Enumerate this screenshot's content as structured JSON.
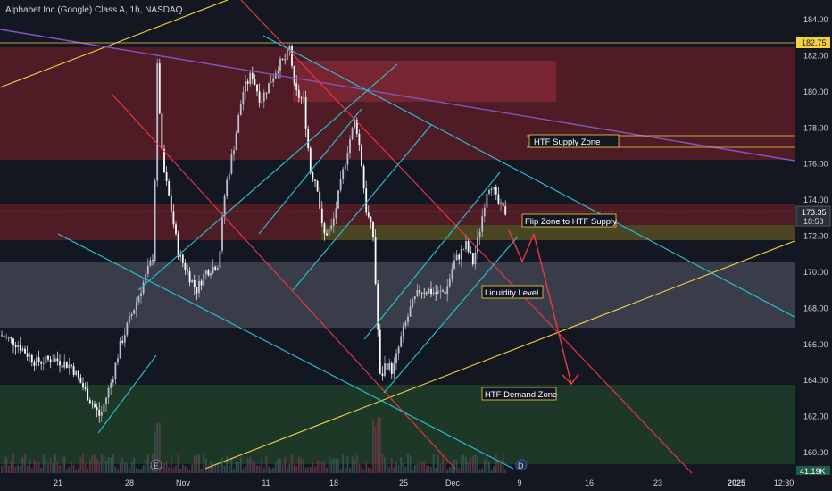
{
  "title": "Alphabet Inc (Google) Class A, 1h, NASDAQ",
  "chart_data": {
    "type": "candlestick",
    "y_ticks": [
      "184.00",
      "182.00",
      "180.00",
      "178.00",
      "176.00",
      "174.00",
      "172.00",
      "170.00",
      "168.00",
      "166.00",
      "164.00",
      "162.00",
      "160.00"
    ],
    "x_ticks": [
      "21",
      "28",
      "Nov",
      "11",
      "18",
      "25",
      "Dec",
      "9",
      "16",
      "23",
      "2025",
      "12:30"
    ],
    "last_price": "173.35",
    "countdown": "18:58",
    "level_badge": "182.75",
    "volume_badge": "41.19K",
    "annotations": {
      "supply": "HTF Supply Zone",
      "flip": "Flip Zone to HTF Supply",
      "liquidity": "Liquidity Level",
      "demand": "HTF Demand Zone"
    },
    "markers": {
      "earnings": "E",
      "dividend": "D"
    },
    "colors": {
      "background": "#131722",
      "up": "#c9d1e0",
      "down": "#ffffff",
      "supply_zone": "#6b1f2b",
      "flip_zone": "#5a5a2a",
      "liquidity_zone": "#3a3e4a",
      "demand_zone": "#1e3b2a",
      "red_line": "#f23645",
      "cyan_line": "#26c6da",
      "yellow_line": "#f5d142",
      "purple_line": "#7e57c2"
    }
  }
}
